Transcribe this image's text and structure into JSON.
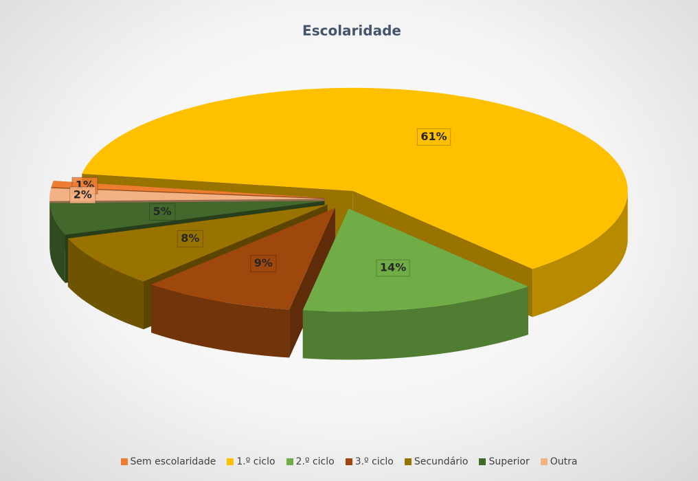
{
  "chart_data": {
    "type": "pie3d",
    "title": "Escolaridade",
    "categories": [
      "Sem escolaridade",
      "1.º ciclo",
      "2.º ciclo",
      "3.º ciclo",
      "Secundário",
      "Superior",
      "Outra"
    ],
    "values": [
      1,
      61,
      14,
      9,
      8,
      5,
      2
    ],
    "value_labels": [
      "1%",
      "61%",
      "14%",
      "9%",
      "8%",
      "5%",
      "2%"
    ],
    "colors": [
      "#ed7d31",
      "#ffc000",
      "#70ad47",
      "#9e480e",
      "#997300",
      "#43682b",
      "#f4b183"
    ],
    "legend": "bottom"
  }
}
